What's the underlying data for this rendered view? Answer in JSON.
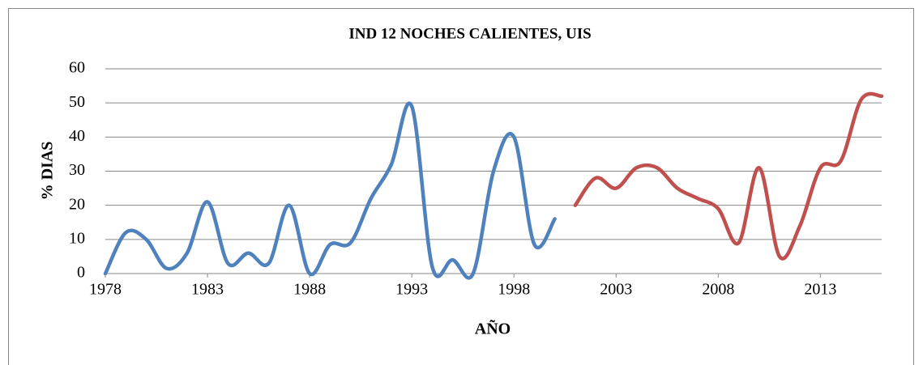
{
  "chart_data": {
    "type": "line",
    "title": "IND 12  NOCHES CALIENTES, UIS",
    "xlabel": "AÑO",
    "ylabel": "% DIAS",
    "series": [
      {
        "color": "#4f81bd",
        "x": [
          1978,
          1979,
          1980,
          1981,
          1982,
          1983,
          1984,
          1985,
          1986,
          1987,
          1988,
          1989,
          1990,
          1991,
          1992,
          1993,
          1994,
          1995,
          1996,
          1997,
          1998,
          1999,
          2000
        ],
        "values": [
          0,
          12,
          10,
          1.5,
          6,
          21,
          3,
          6,
          3,
          20,
          0,
          8.5,
          9,
          22,
          32,
          49,
          2,
          4,
          0,
          30,
          40,
          8.5,
          16
        ]
      },
      {
        "color": "#c0504d",
        "x": [
          2001,
          2002,
          2003,
          2004,
          2005,
          2006,
          2007,
          2008,
          2009,
          2010,
          2011,
          2012,
          2013,
          2014,
          2015,
          2016
        ],
        "values": [
          20,
          28,
          25,
          31,
          31,
          25,
          22,
          19,
          9,
          31,
          5,
          14,
          31,
          33,
          51,
          52
        ]
      }
    ],
    "xlim": [
      1978,
      2016
    ],
    "xticks": [
      1978,
      1983,
      1988,
      1993,
      1998,
      2003,
      2008,
      2013
    ],
    "ylim": [
      0,
      60
    ],
    "yticks": [
      0,
      10,
      20,
      30,
      40,
      50,
      60
    ],
    "grid": true
  }
}
